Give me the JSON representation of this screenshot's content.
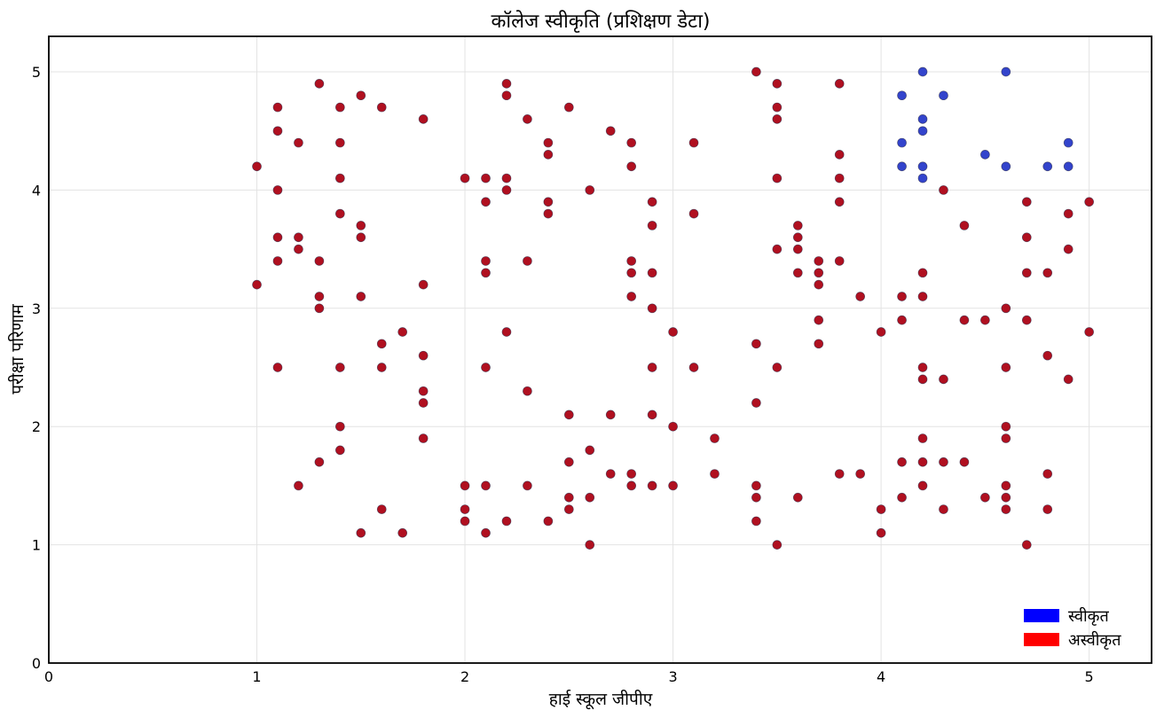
{
  "chart_data": {
    "type": "scatter",
    "title": "कॉलेज स्वीकृति (प्रशिक्षण डेटा)",
    "xlabel": "हाई स्कूल जीपीए",
    "ylabel": "परीक्षा परिणाम",
    "xlim": [
      0,
      5.3
    ],
    "ylim": [
      0,
      5.3
    ],
    "xticks": [
      0,
      1,
      2,
      3,
      4,
      5
    ],
    "yticks": [
      0,
      1,
      2,
      3,
      4,
      5
    ],
    "grid": true,
    "legend_position": "bottom-right",
    "series": [
      {
        "name": "स्वीकृत",
        "legend_color": "#0000ff",
        "marker_color": "#3344cc",
        "points": [
          [
            4.1,
            4.8
          ],
          [
            4.2,
            5.0
          ],
          [
            4.3,
            4.8
          ],
          [
            4.6,
            5.0
          ],
          [
            4.2,
            4.6
          ],
          [
            4.2,
            4.5
          ],
          [
            4.1,
            4.4
          ],
          [
            4.5,
            4.3
          ],
          [
            4.9,
            4.4
          ],
          [
            4.1,
            4.2
          ],
          [
            4.2,
            4.2
          ],
          [
            4.6,
            4.2
          ],
          [
            4.8,
            4.2
          ],
          [
            4.9,
            4.2
          ],
          [
            4.2,
            4.1
          ]
        ]
      },
      {
        "name": "अस्वीकृत",
        "legend_color": "#ff0000",
        "marker_color": "#b01020",
        "points": [
          [
            1.0,
            4.2
          ],
          [
            1.0,
            3.2
          ],
          [
            1.1,
            4.7
          ],
          [
            1.1,
            4.5
          ],
          [
            1.1,
            4.0
          ],
          [
            1.1,
            3.6
          ],
          [
            1.1,
            3.4
          ],
          [
            1.1,
            2.5
          ],
          [
            1.2,
            4.4
          ],
          [
            1.2,
            3.6
          ],
          [
            1.2,
            3.5
          ],
          [
            1.2,
            1.5
          ],
          [
            1.3,
            4.9
          ],
          [
            1.3,
            3.4
          ],
          [
            1.3,
            3.1
          ],
          [
            1.3,
            3.0
          ],
          [
            1.3,
            1.7
          ],
          [
            1.4,
            4.7
          ],
          [
            1.4,
            4.4
          ],
          [
            1.4,
            4.1
          ],
          [
            1.4,
            3.8
          ],
          [
            1.4,
            2.5
          ],
          [
            1.4,
            2.0
          ],
          [
            1.4,
            1.8
          ],
          [
            1.5,
            4.8
          ],
          [
            1.5,
            3.7
          ],
          [
            1.5,
            3.6
          ],
          [
            1.5,
            3.1
          ],
          [
            1.5,
            1.1
          ],
          [
            1.6,
            4.7
          ],
          [
            1.6,
            2.7
          ],
          [
            1.6,
            2.5
          ],
          [
            1.6,
            1.3
          ],
          [
            1.7,
            2.8
          ],
          [
            1.7,
            1.1
          ],
          [
            1.8,
            4.6
          ],
          [
            1.8,
            3.2
          ],
          [
            1.8,
            2.6
          ],
          [
            1.8,
            2.3
          ],
          [
            1.8,
            2.2
          ],
          [
            1.8,
            1.9
          ],
          [
            2.0,
            4.1
          ],
          [
            2.0,
            1.5
          ],
          [
            2.0,
            1.3
          ],
          [
            2.0,
            1.2
          ],
          [
            2.1,
            4.1
          ],
          [
            2.1,
            3.9
          ],
          [
            2.1,
            3.4
          ],
          [
            2.1,
            3.3
          ],
          [
            2.1,
            2.5
          ],
          [
            2.1,
            1.5
          ],
          [
            2.1,
            1.1
          ],
          [
            2.2,
            4.9
          ],
          [
            2.2,
            4.8
          ],
          [
            2.2,
            4.1
          ],
          [
            2.2,
            4.0
          ],
          [
            2.2,
            2.8
          ],
          [
            2.2,
            1.2
          ],
          [
            2.3,
            4.6
          ],
          [
            2.3,
            3.4
          ],
          [
            2.3,
            2.3
          ],
          [
            2.3,
            1.5
          ],
          [
            2.4,
            4.4
          ],
          [
            2.4,
            4.3
          ],
          [
            2.4,
            3.9
          ],
          [
            2.4,
            3.8
          ],
          [
            2.4,
            1.2
          ],
          [
            2.5,
            4.7
          ],
          [
            2.5,
            2.1
          ],
          [
            2.5,
            1.7
          ],
          [
            2.5,
            1.4
          ],
          [
            2.5,
            1.3
          ],
          [
            2.6,
            4.0
          ],
          [
            2.6,
            1.8
          ],
          [
            2.6,
            1.4
          ],
          [
            2.6,
            1.0
          ],
          [
            2.7,
            4.5
          ],
          [
            2.7,
            2.1
          ],
          [
            2.7,
            1.6
          ],
          [
            2.8,
            4.4
          ],
          [
            2.8,
            4.2
          ],
          [
            2.8,
            3.4
          ],
          [
            2.8,
            3.3
          ],
          [
            2.8,
            3.1
          ],
          [
            2.8,
            1.6
          ],
          [
            2.8,
            1.5
          ],
          [
            2.9,
            3.9
          ],
          [
            2.9,
            3.7
          ],
          [
            2.9,
            3.3
          ],
          [
            2.9,
            3.0
          ],
          [
            2.9,
            2.5
          ],
          [
            2.9,
            2.1
          ],
          [
            2.9,
            1.5
          ],
          [
            3.0,
            2.8
          ],
          [
            3.0,
            2.0
          ],
          [
            3.0,
            1.5
          ],
          [
            3.1,
            4.4
          ],
          [
            3.1,
            3.8
          ],
          [
            3.1,
            2.5
          ],
          [
            3.2,
            1.9
          ],
          [
            3.2,
            1.6
          ],
          [
            3.4,
            5.0
          ],
          [
            3.4,
            2.7
          ],
          [
            3.4,
            2.2
          ],
          [
            3.4,
            1.5
          ],
          [
            3.4,
            1.4
          ],
          [
            3.4,
            1.2
          ],
          [
            3.5,
            4.9
          ],
          [
            3.5,
            4.7
          ],
          [
            3.5,
            4.6
          ],
          [
            3.5,
            4.1
          ],
          [
            3.5,
            3.5
          ],
          [
            3.5,
            2.5
          ],
          [
            3.5,
            1.0
          ],
          [
            3.6,
            3.7
          ],
          [
            3.6,
            3.6
          ],
          [
            3.6,
            3.5
          ],
          [
            3.6,
            3.3
          ],
          [
            3.6,
            1.4
          ],
          [
            3.7,
            3.4
          ],
          [
            3.7,
            3.3
          ],
          [
            3.7,
            3.2
          ],
          [
            3.7,
            2.9
          ],
          [
            3.7,
            2.7
          ],
          [
            3.8,
            4.9
          ],
          [
            3.8,
            4.3
          ],
          [
            3.8,
            4.1
          ],
          [
            3.8,
            3.9
          ],
          [
            3.8,
            3.4
          ],
          [
            3.8,
            1.6
          ],
          [
            3.9,
            3.1
          ],
          [
            3.9,
            1.6
          ],
          [
            4.0,
            2.8
          ],
          [
            4.0,
            1.3
          ],
          [
            4.0,
            1.1
          ],
          [
            4.1,
            3.1
          ],
          [
            4.1,
            2.9
          ],
          [
            4.1,
            1.7
          ],
          [
            4.1,
            1.4
          ],
          [
            4.2,
            3.3
          ],
          [
            4.2,
            3.1
          ],
          [
            4.2,
            2.5
          ],
          [
            4.2,
            2.4
          ],
          [
            4.2,
            1.9
          ],
          [
            4.2,
            1.7
          ],
          [
            4.2,
            1.5
          ],
          [
            4.3,
            4.0
          ],
          [
            4.3,
            2.4
          ],
          [
            4.3,
            1.7
          ],
          [
            4.3,
            1.3
          ],
          [
            4.4,
            3.7
          ],
          [
            4.4,
            2.9
          ],
          [
            4.4,
            1.7
          ],
          [
            4.5,
            2.9
          ],
          [
            4.5,
            1.4
          ],
          [
            4.6,
            3.0
          ],
          [
            4.6,
            2.5
          ],
          [
            4.6,
            2.0
          ],
          [
            4.6,
            1.9
          ],
          [
            4.6,
            1.5
          ],
          [
            4.6,
            1.4
          ],
          [
            4.6,
            1.3
          ],
          [
            4.7,
            3.9
          ],
          [
            4.7,
            3.6
          ],
          [
            4.7,
            3.3
          ],
          [
            4.7,
            2.9
          ],
          [
            4.7,
            1.0
          ],
          [
            4.8,
            3.3
          ],
          [
            4.8,
            2.6
          ],
          [
            4.8,
            1.6
          ],
          [
            4.8,
            1.3
          ],
          [
            4.9,
            3.8
          ],
          [
            4.9,
            3.5
          ],
          [
            4.9,
            2.4
          ],
          [
            5.0,
            3.9
          ],
          [
            5.0,
            2.8
          ]
        ]
      }
    ]
  }
}
